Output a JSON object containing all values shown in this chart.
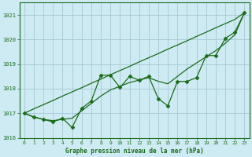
{
  "xlabel": "Graphe pression niveau de la mer (hPa)",
  "x_values": [
    0,
    1,
    2,
    3,
    4,
    5,
    6,
    7,
    8,
    9,
    10,
    11,
    12,
    13,
    14,
    15,
    16,
    17,
    18,
    19,
    20,
    21,
    22,
    23
  ],
  "y_main": [
    1017.0,
    1016.85,
    1016.75,
    1016.65,
    1016.8,
    1016.42,
    1017.2,
    1017.5,
    1018.55,
    1018.55,
    1018.05,
    1018.5,
    1018.35,
    1018.5,
    1017.6,
    1017.3,
    1018.3,
    1018.3,
    1018.45,
    1019.35,
    1019.35,
    1020.05,
    1020.3,
    1021.1
  ],
  "y_smooth": [
    1017.0,
    1016.85,
    1016.75,
    1016.7,
    1016.75,
    1016.8,
    1017.1,
    1017.4,
    1017.7,
    1017.95,
    1018.1,
    1018.25,
    1018.35,
    1018.45,
    1018.3,
    1018.2,
    1018.5,
    1018.8,
    1019.05,
    1019.3,
    1019.55,
    1019.85,
    1020.2,
    1021.1
  ],
  "y_linear": [
    1017.0,
    1017.18,
    1017.35,
    1017.52,
    1017.7,
    1017.87,
    1018.04,
    1018.22,
    1018.39,
    1018.57,
    1018.74,
    1018.91,
    1019.09,
    1019.26,
    1019.43,
    1019.61,
    1019.78,
    1019.95,
    1020.13,
    1020.3,
    1020.48,
    1020.65,
    1020.82,
    1021.1
  ],
  "line_color": "#1a6b1a",
  "bg_color": "#ceeaf2",
  "grid_color": "#a8c8d4",
  "tick_label_color": "#1a6b1a",
  "title_color": "#1a6b1a",
  "ylim": [
    1016.0,
    1021.5
  ],
  "yticks": [
    1016,
    1017,
    1018,
    1019,
    1020,
    1021
  ],
  "marker": "D",
  "marker_size": 2.5,
  "line_width": 0.9
}
